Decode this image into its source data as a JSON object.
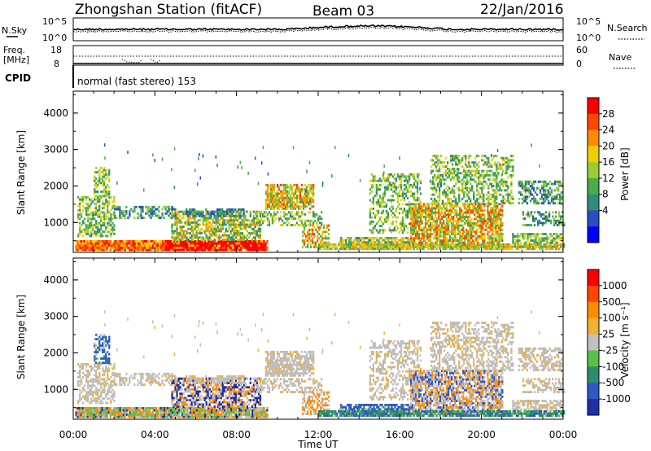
{
  "header": {
    "title": "Zhongshan Station (fitACF)",
    "beam": "Beam 03",
    "date": "22/Jan/2016"
  },
  "status_panels": {
    "nsky_label": "N.Sky",
    "nsky_ticks": [
      "10^5",
      "10^0"
    ],
    "nsearch_label": "N.Search",
    "nsearch_ticks": [
      "10^5",
      "10^0"
    ],
    "freq_label": "Freq.",
    "freq_unit": "[MHz]",
    "freq_ticks": [
      "18",
      "8"
    ],
    "nave_label": "Nave",
    "nave_ticks": [
      "60",
      "0"
    ],
    "cpid_label": "CPID",
    "cpid_text": "normal (fast stereo) 153"
  },
  "chart_data": [
    {
      "type": "heatmap",
      "name": "power",
      "ylabel": "Slant Range [km]",
      "xlabel": "",
      "yticks": [
        "1000",
        "2000",
        "3000",
        "4000"
      ],
      "ylim": [
        180,
        4600
      ],
      "xlim": [
        0,
        24
      ],
      "colorbar_label": "Power [dB]",
      "colorbar_ticks": [
        "4",
        "8",
        "12",
        "16",
        "20",
        "24",
        "28"
      ],
      "colorbar_colors": [
        "#0000ff",
        "#2a4fc0",
        "#2f8c7a",
        "#4caa4c",
        "#9acd32",
        "#f0d000",
        "#ff8c00",
        "#ff4500",
        "#ff0000"
      ]
    },
    {
      "type": "heatmap",
      "name": "velocity",
      "ylabel": "Slant Range [km]",
      "xlabel": "Time UT",
      "xticks": [
        "00:00",
        "04:00",
        "08:00",
        "12:00",
        "16:00",
        "20:00",
        "00:00"
      ],
      "yticks": [
        "1000",
        "2000",
        "3000",
        "4000"
      ],
      "ylim": [
        180,
        4600
      ],
      "xlim": [
        0,
        24
      ],
      "colorbar_label": "Velocity [m s⁻¹]",
      "colorbar_ticks": [
        "1000",
        "500",
        "100",
        "25",
        "-25",
        "-100",
        "-500",
        "-1000"
      ],
      "colorbar_colors": [
        "#1f2fa8",
        "#2f57c8",
        "#2e8b6e",
        "#59c048",
        "#c0c0c0",
        "#f0b030",
        "#ff8c00",
        "#ff4500",
        "#ff0000"
      ],
      "ground_scatter_color": "#bebebe"
    }
  ]
}
